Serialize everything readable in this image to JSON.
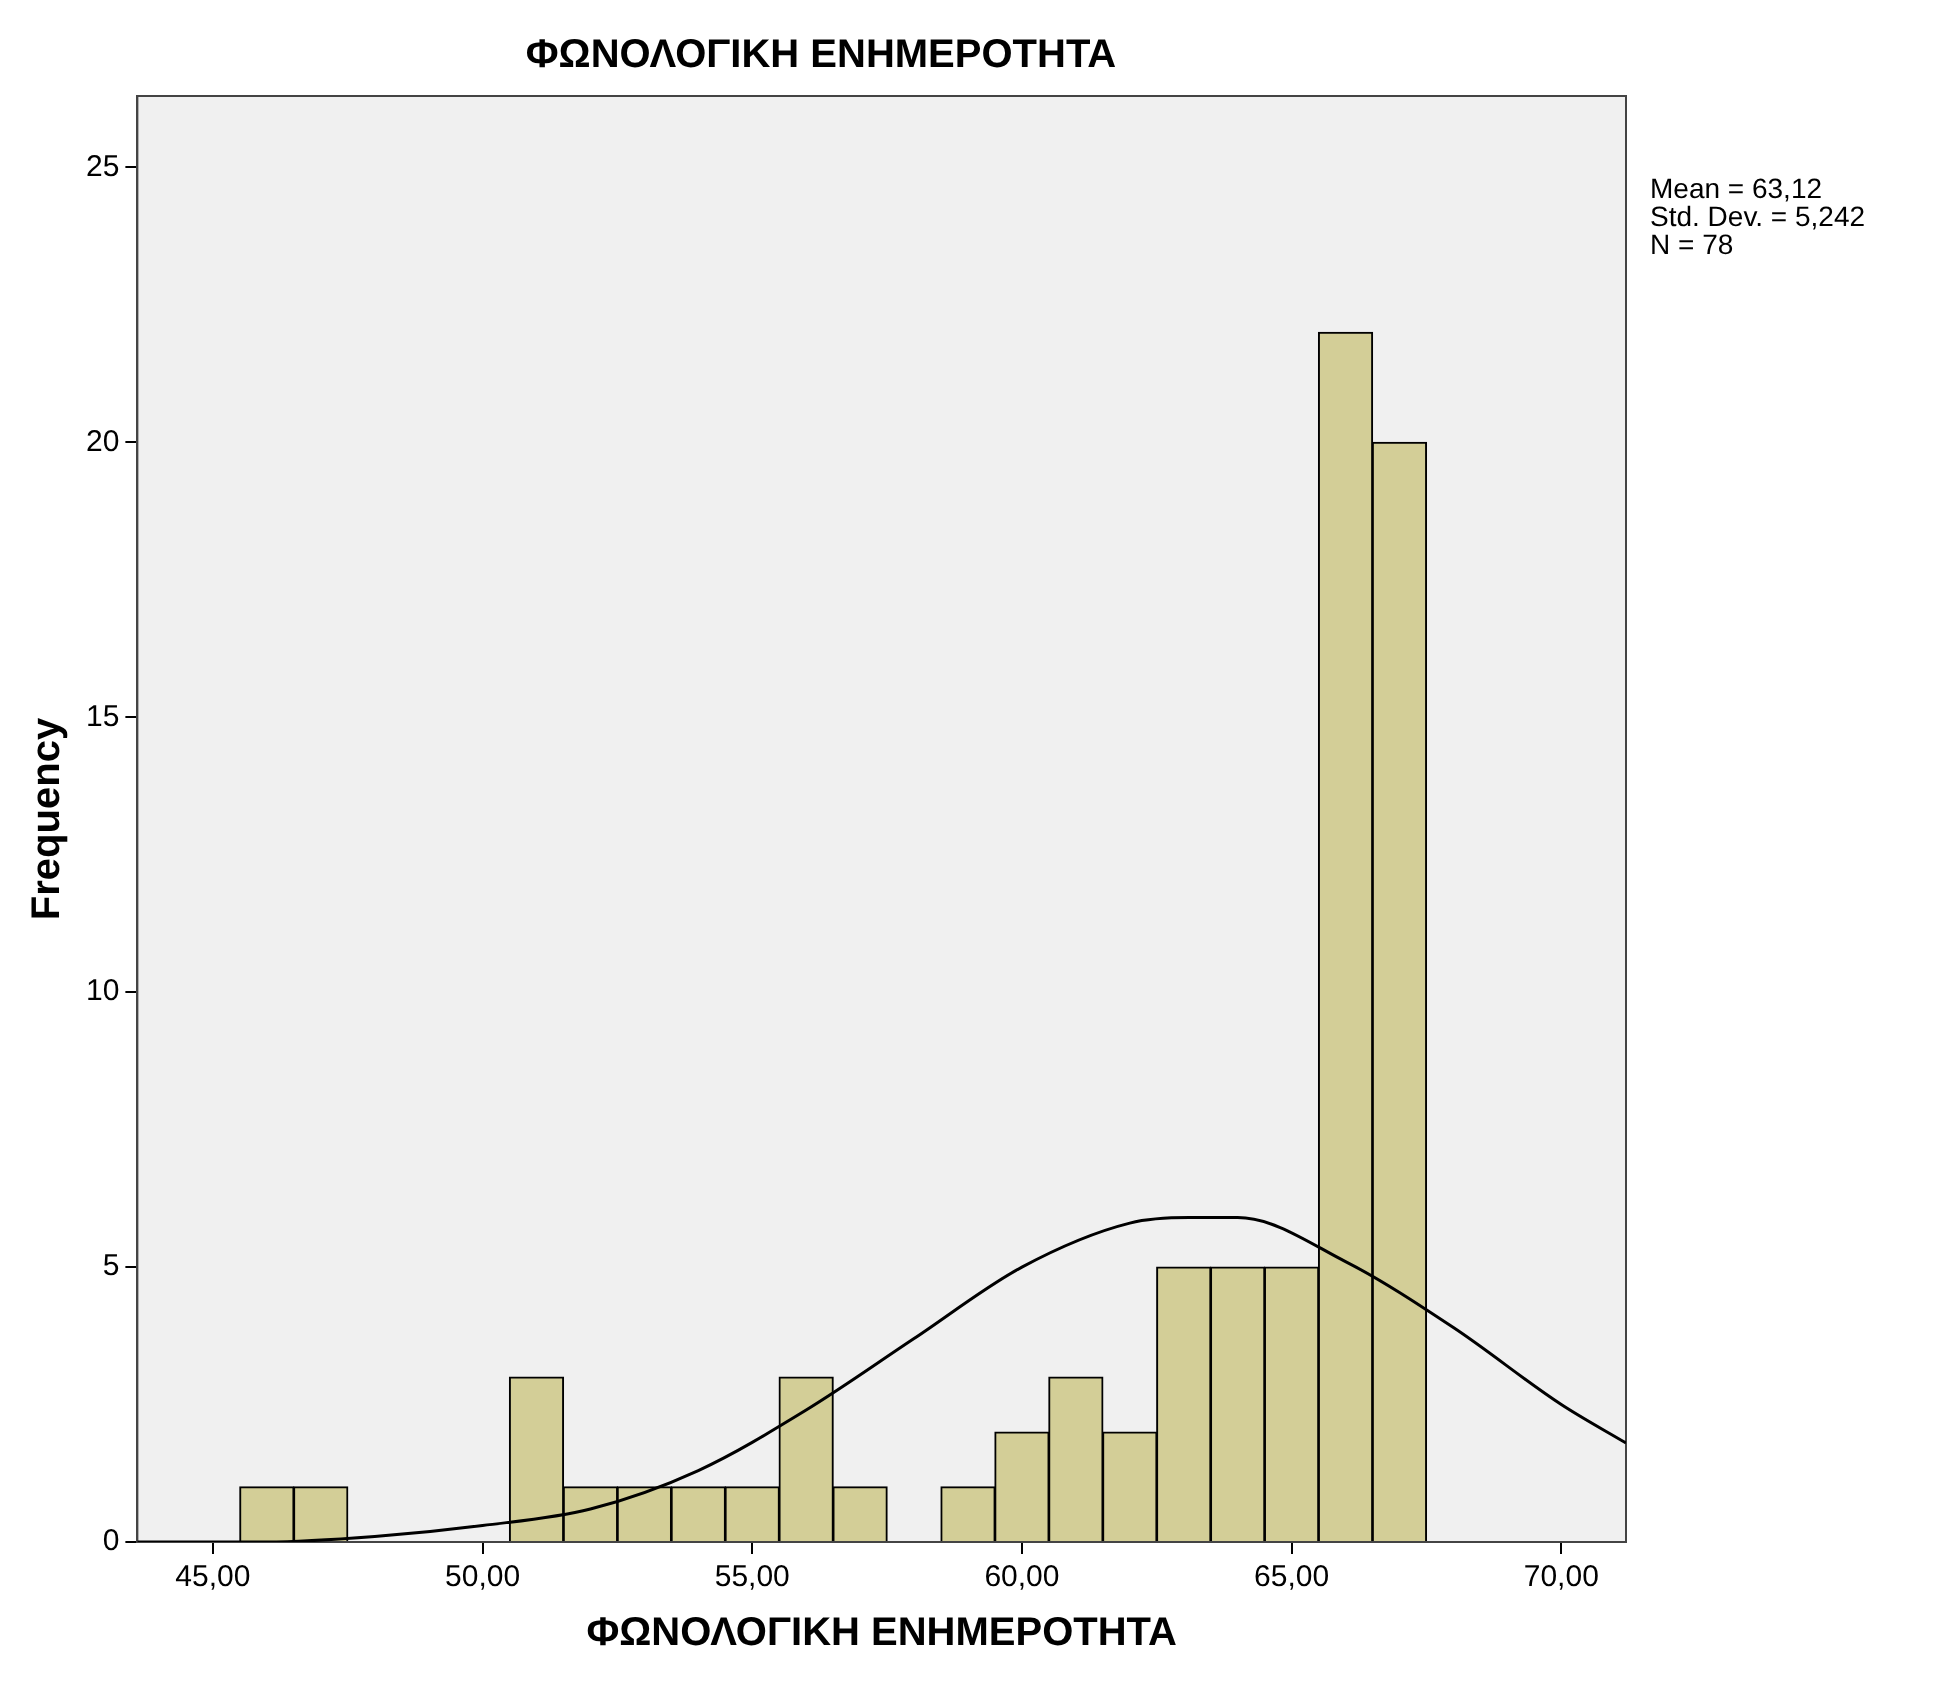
{
  "chart_data": {
    "type": "histogram",
    "title": "ΦΩΝΟΛΟΓΙΚΗ ΕΝΗΜΕΡΟΤΗΤΑ",
    "xlabel": "ΦΩΝΟΛΟΓΙΚΗ ΕΝΗΜΕΡΟΤΗΤΑ",
    "ylabel": "Frequency",
    "bins": [
      45.5,
      46.5,
      47.5,
      48.5,
      49.5,
      50.5,
      51.5,
      52.5,
      53.5,
      54.5,
      55.5,
      56.5,
      57.5,
      58.5,
      59.5,
      60.5,
      61.5,
      62.5,
      63.5,
      64.5,
      65.5,
      66.5,
      67.5
    ],
    "series": [
      {
        "color": "#d3ce97",
        "values": [
          1,
          1,
          0,
          0,
          0,
          3,
          1,
          1,
          1,
          1,
          3,
          1,
          0,
          1,
          2,
          3,
          2,
          5,
          5,
          5,
          22,
          20
        ]
      },
      {
        "type": "line",
        "color": "#000000",
        "x": [
          43.6,
          46,
          48,
          50,
          52,
          54,
          56,
          58,
          60,
          62,
          63.1,
          64,
          66,
          68,
          70,
          71.2
        ],
        "values": [
          0.0,
          0.0,
          0.1,
          0.3,
          0.6,
          1.3,
          2.4,
          3.7,
          5.0,
          5.8,
          5.9,
          5.9,
          5.1,
          3.9,
          2.5,
          1.8
        ]
      }
    ],
    "xlim": [
      43.6,
      71.2
    ],
    "xticks": [
      {
        "value": 45,
        "label": "45,00"
      },
      {
        "value": 50,
        "label": "50,00"
      },
      {
        "value": 55,
        "label": "55,00"
      },
      {
        "value": 60,
        "label": "60,00"
      },
      {
        "value": 65,
        "label": "65,00"
      },
      {
        "value": 70,
        "label": "70,00"
      }
    ],
    "ylim": [
      0,
      26.3
    ],
    "yticks": [
      0,
      5,
      10,
      15,
      20,
      25
    ],
    "marker": "none",
    "grid": false,
    "legend": false,
    "annotations": [
      "Mean = 63,12",
      "Std. Dev. = 5,242",
      "N = 78"
    ]
  }
}
